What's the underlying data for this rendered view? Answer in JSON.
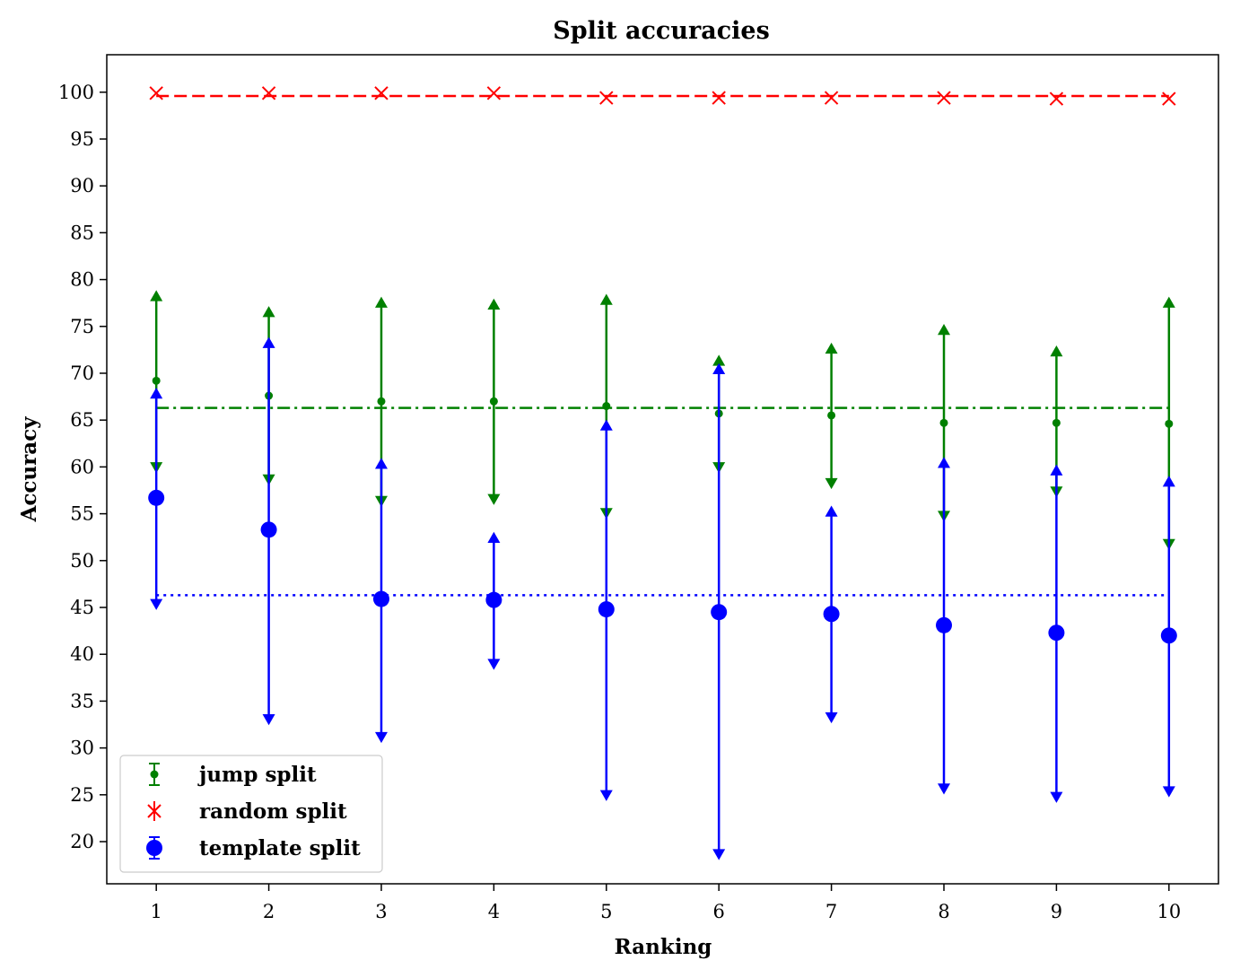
{
  "chart_data": {
    "type": "scatter",
    "title": "Split accuracies",
    "xlabel": "Ranking",
    "ylabel": "Accuracy",
    "x": [
      1,
      2,
      3,
      4,
      5,
      6,
      7,
      8,
      9,
      10
    ],
    "xticks": [
      "1",
      "2",
      "3",
      "4",
      "5",
      "6",
      "7",
      "8",
      "9",
      "10"
    ],
    "yticks": [
      "20",
      "25",
      "30",
      "35",
      "40",
      "45",
      "50",
      "55",
      "60",
      "65",
      "70",
      "75",
      "80",
      "85",
      "90",
      "95",
      "100"
    ],
    "xlim": [
      0.56,
      10.44
    ],
    "ylim": [
      15.5,
      104
    ],
    "grid": false,
    "legend_position": "lower-left",
    "series": [
      {
        "name": "jump split",
        "color": "#008000",
        "marker": "small-dot",
        "mean_line_style": "dash-dot",
        "mean": 66.3,
        "values": [
          69.2,
          67.6,
          67.0,
          67.0,
          66.5,
          65.7,
          65.5,
          64.7,
          64.7,
          64.6
        ],
        "lower": [
          60.0,
          58.7,
          56.4,
          56.6,
          55.1,
          60.0,
          58.3,
          54.8,
          57.4,
          51.8
        ],
        "upper": [
          78.2,
          76.5,
          77.5,
          77.3,
          77.8,
          71.3,
          72.6,
          74.6,
          72.3,
          77.5
        ]
      },
      {
        "name": "random split",
        "color": "#ff0000",
        "marker": "x",
        "mean_line_style": "dashed",
        "mean": 99.6,
        "values": [
          99.9,
          99.9,
          99.9,
          99.9,
          99.4,
          99.4,
          99.4,
          99.4,
          99.3,
          99.3
        ],
        "lower": [
          99.9,
          99.9,
          99.9,
          99.9,
          99.4,
          99.4,
          99.4,
          99.4,
          99.3,
          99.3
        ],
        "upper": [
          99.9,
          99.9,
          99.9,
          99.9,
          99.4,
          99.4,
          99.4,
          99.4,
          99.3,
          99.3
        ]
      },
      {
        "name": "template split",
        "color": "#0000ff",
        "marker": "large-dot",
        "mean_line_style": "dotted",
        "mean": 46.3,
        "values": [
          56.7,
          53.3,
          45.9,
          45.8,
          44.8,
          44.5,
          44.3,
          43.1,
          42.3,
          42.0
        ],
        "lower": [
          45.4,
          33.1,
          31.2,
          39.0,
          25.0,
          18.7,
          33.3,
          25.7,
          24.8,
          25.4
        ],
        "upper": [
          67.8,
          73.2,
          60.3,
          52.4,
          64.4,
          70.4,
          55.2,
          60.4,
          59.6,
          58.4
        ]
      }
    ]
  }
}
